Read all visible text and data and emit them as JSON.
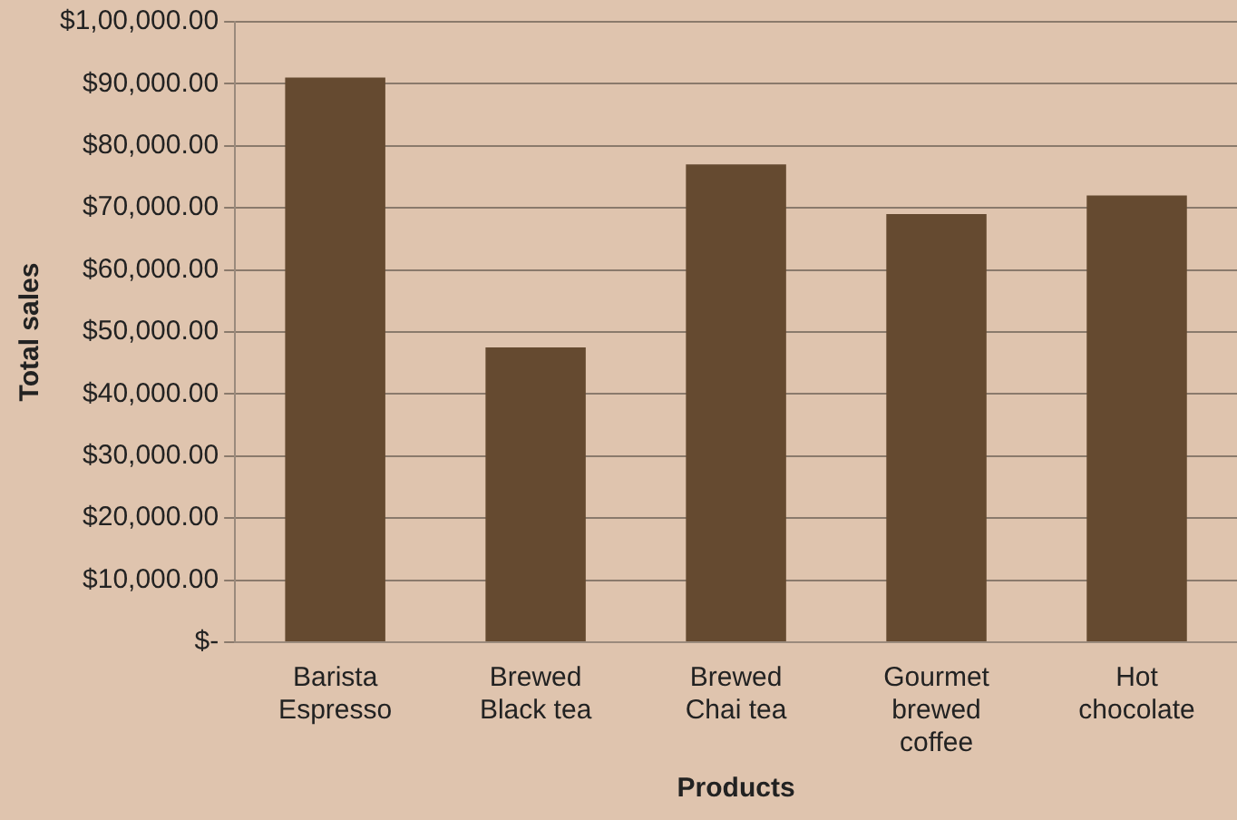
{
  "chart_data": {
    "type": "bar",
    "xlabel": "Products",
    "ylabel": "Total sales",
    "categories": [
      "Barista Espresso",
      "Brewed Black tea",
      "Brewed Chai tea",
      "Gourmet brewed coffee",
      "Hot chocolate"
    ],
    "values": [
      91000,
      47500,
      77000,
      69000,
      72000
    ],
    "color": "#654a30",
    "ylim": [
      0,
      100000
    ],
    "yticks": [
      {
        "value": 0,
        "label": "$-"
      },
      {
        "value": 10000,
        "label": "$10,000.00"
      },
      {
        "value": 20000,
        "label": "$20,000.00"
      },
      {
        "value": 30000,
        "label": "$30,000.00"
      },
      {
        "value": 40000,
        "label": "$40,000.00"
      },
      {
        "value": 50000,
        "label": "$50,000.00"
      },
      {
        "value": 60000,
        "label": "$60,000.00"
      },
      {
        "value": 70000,
        "label": "$70,000.00"
      },
      {
        "value": 80000,
        "label": "$80,000.00"
      },
      {
        "value": 90000,
        "label": "$90,000.00"
      },
      {
        "value": 100000,
        "label": "$1,00,000.00"
      }
    ],
    "grid": "y"
  }
}
